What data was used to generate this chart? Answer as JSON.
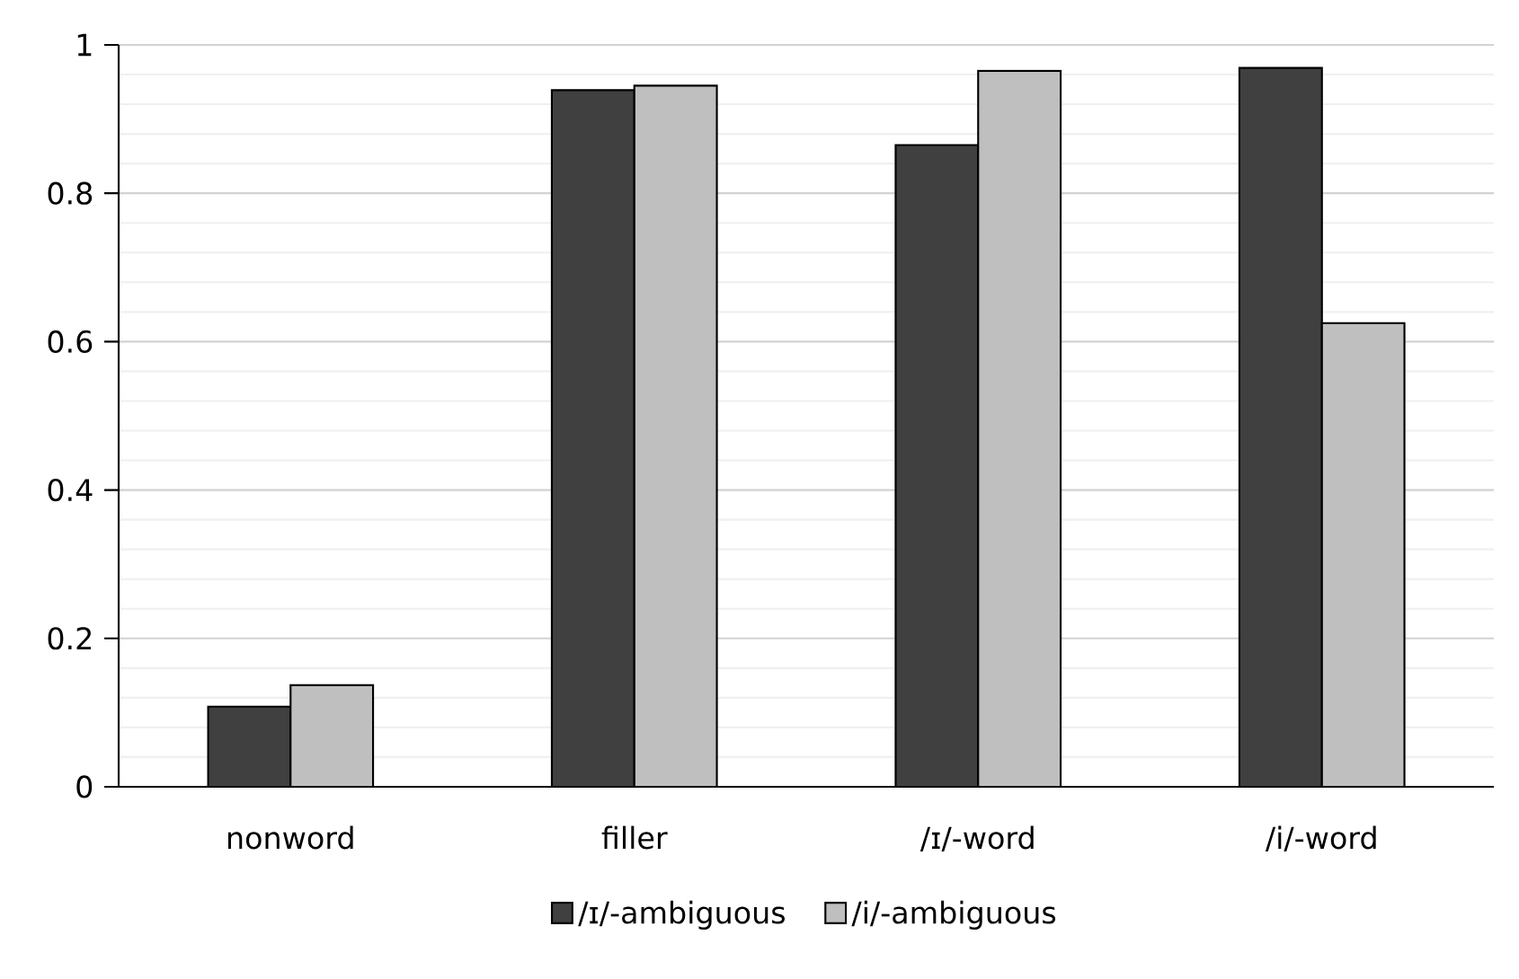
{
  "chart_data": {
    "type": "bar",
    "categories": [
      "nonword",
      "filler",
      "/ɪ/-word",
      "/i/-word"
    ],
    "series": [
      {
        "name": "/ɪ/-ambiguous",
        "color": "#404040",
        "values": [
          0.108,
          0.939,
          0.865,
          0.969
        ]
      },
      {
        "name": "/i/-ambiguous",
        "color": "#bfbfbf",
        "values": [
          0.137,
          0.945,
          0.965,
          0.625
        ]
      }
    ],
    "ylim": [
      0,
      1
    ],
    "yticks": [
      0,
      0.2,
      0.4,
      0.6,
      0.8,
      1
    ],
    "grid": "y",
    "legend": "bottom"
  }
}
